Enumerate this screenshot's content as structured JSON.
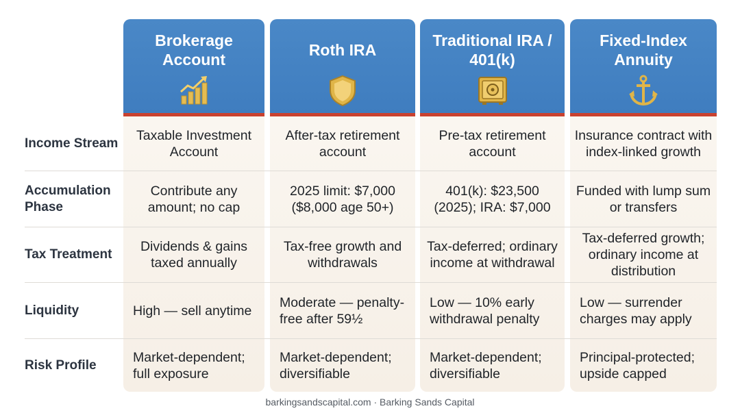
{
  "columns": [
    {
      "title": "Brokerage Account",
      "icon": "bar-chart-arrow-icon"
    },
    {
      "title": "Roth IRA",
      "icon": "shield-icon"
    },
    {
      "title": "Traditional IRA / 401(k)",
      "icon": "safe-icon"
    },
    {
      "title": "Fixed-Index Annuity",
      "icon": "anchor-icon"
    }
  ],
  "rows": [
    {
      "label": "Income Stream",
      "cells": [
        "Taxable Investment Account",
        "After-tax retirement account",
        "Pre-tax retirement account",
        "Insurance contract with index-linked growth"
      ]
    },
    {
      "label": "Accumulation Phase",
      "cells": [
        "Contribute any amount; no cap",
        "2025 limit: $7,000 ($8,000 age 50+)",
        "401(k): $23,500 (2025); IRA: $7,000",
        "Funded with lump sum or transfers"
      ]
    },
    {
      "label": "Tax Treatment",
      "cells": [
        "Dividends & gains taxed annually",
        "Tax-free growth and withdrawals",
        "Tax-deferred; ordinary income at withdrawal",
        "Tax-deferred growth; ordinary income at distribution"
      ]
    },
    {
      "label": "Liquidity",
      "cells": [
        "High — sell anytime",
        "Moderate — penalty-free after 59½",
        "Low — 10% early withdrawal penalty",
        "Low — surrender charges may apply"
      ]
    },
    {
      "label": "Risk Profile",
      "cells": [
        "Market-dependent; full exposure",
        "Market-dependent; diversifiable",
        "Market-dependent; diversifiable",
        "Principal-protected; upside capped"
      ]
    }
  ],
  "footer": "barkingsandscapital.com · Barking Sands Capital",
  "colors": {
    "header_blue": "#4285c5",
    "accent_red": "#c9412f",
    "icon_gold": "#e0b548",
    "cell_bg": "#f8f3ec"
  }
}
